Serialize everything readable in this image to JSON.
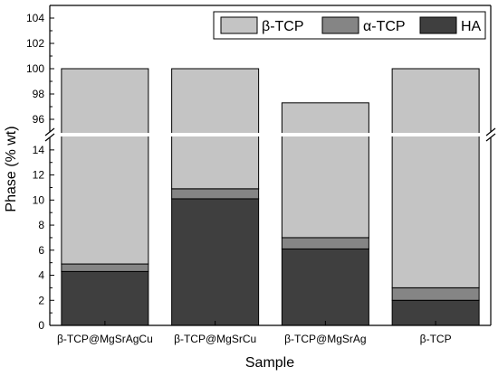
{
  "chart_data": {
    "type": "bar",
    "stacked": true,
    "broken_y_axis": true,
    "xlabel": "Sample",
    "ylabel": "Phase (% wt)",
    "categories": [
      "β-TCP@MgSrAgCu",
      "β-TCP@MgSrCu",
      "β-TCP@MgSrAg",
      "β-TCP"
    ],
    "series": [
      {
        "name": "HA",
        "color": "#3f3f3f",
        "values": [
          4.3,
          10.1,
          6.1,
          2.0
        ]
      },
      {
        "name": "α-TCP",
        "color": "#858585",
        "values": [
          0.6,
          0.8,
          0.9,
          1.0
        ]
      },
      {
        "name": "β-TCP",
        "color": "#c4c4c4",
        "values": [
          95.1,
          89.1,
          90.3,
          97.0
        ]
      }
    ],
    "totals": [
      100,
      100,
      97.3,
      100
    ],
    "y_lower_segment": {
      "range": [
        0,
        15
      ],
      "ticks": [
        0,
        2,
        4,
        6,
        8,
        10,
        12,
        14
      ]
    },
    "y_upper_segment": {
      "range": [
        95,
        105
      ],
      "ticks": [
        96,
        98,
        100,
        102,
        104
      ]
    },
    "legend": {
      "position": "top-right",
      "order": [
        "β-TCP",
        "α-TCP",
        "HA"
      ]
    },
    "grid": false
  }
}
